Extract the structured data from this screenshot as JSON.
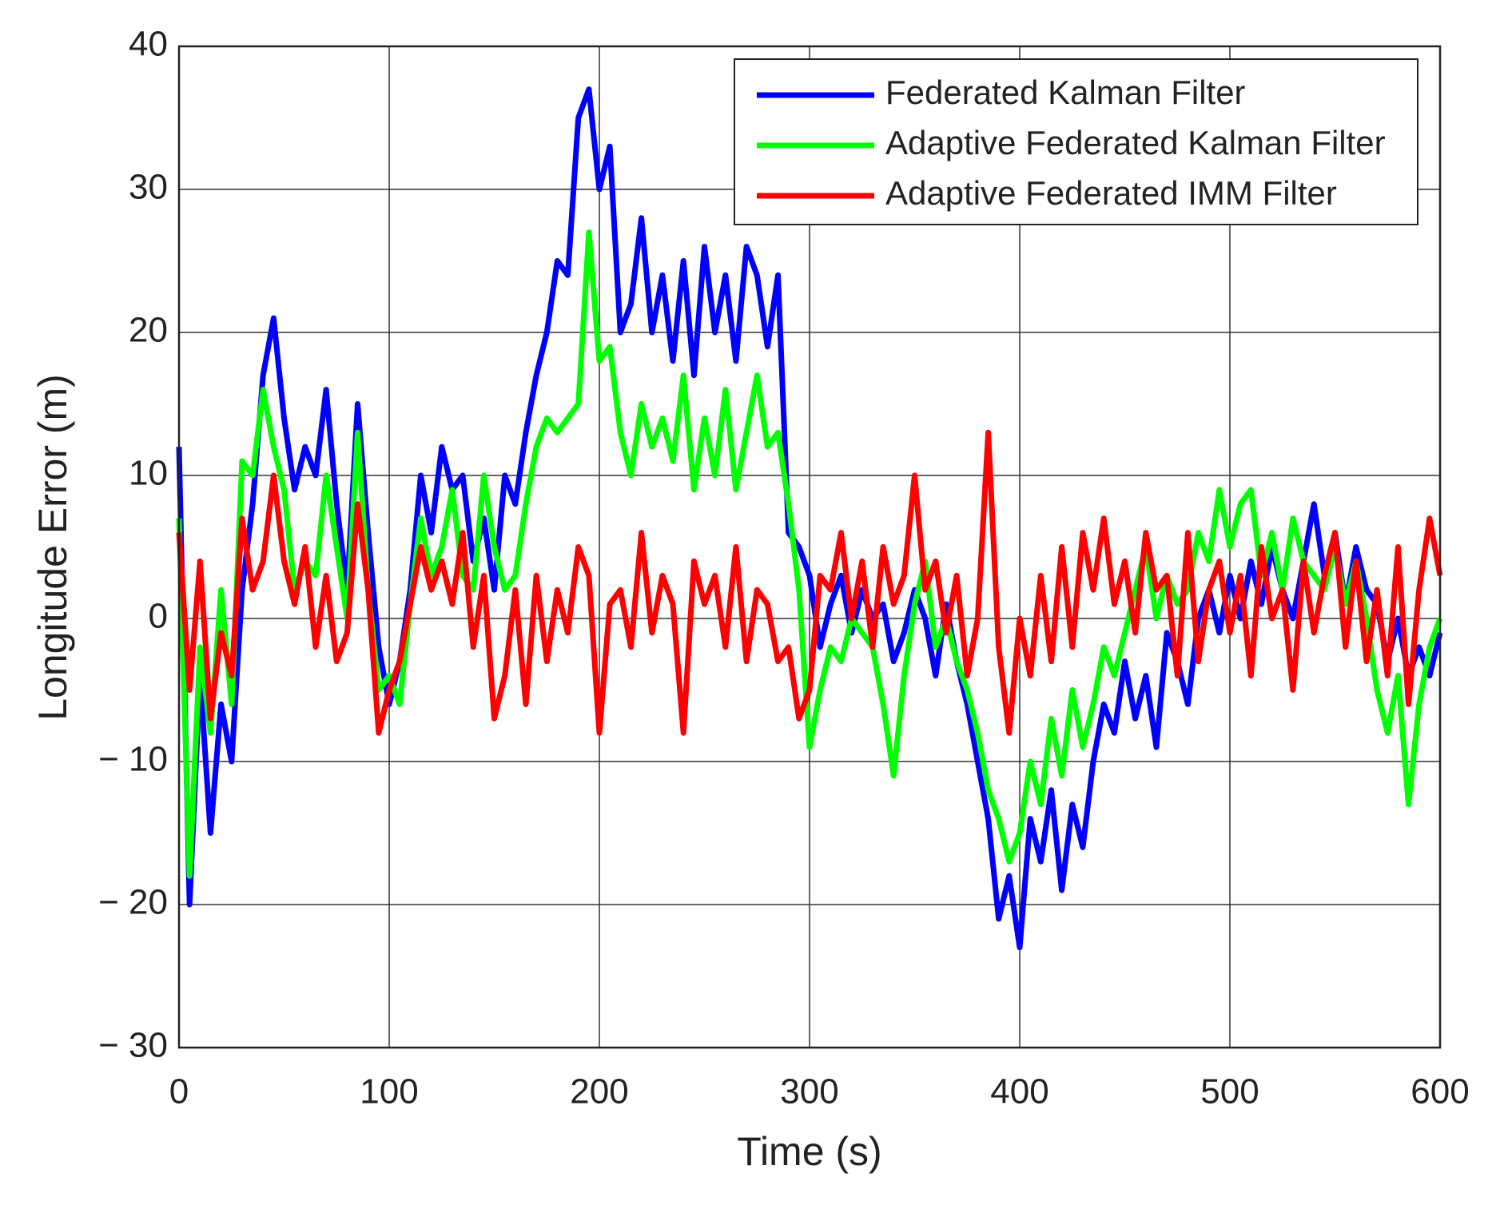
{
  "chart_data": {
    "type": "line",
    "xlabel": "Time (s)",
    "ylabel": "Longitude Error (m)",
    "x": [
      0,
      5,
      10,
      15,
      20,
      25,
      30,
      35,
      40,
      45,
      50,
      55,
      60,
      65,
      70,
      75,
      80,
      85,
      90,
      95,
      100,
      105,
      110,
      115,
      120,
      125,
      130,
      135,
      140,
      145,
      150,
      155,
      160,
      165,
      170,
      175,
      180,
      185,
      190,
      195,
      200,
      205,
      210,
      215,
      220,
      225,
      230,
      235,
      240,
      245,
      250,
      255,
      260,
      265,
      270,
      275,
      280,
      285,
      290,
      295,
      300,
      305,
      310,
      315,
      320,
      325,
      330,
      335,
      340,
      345,
      350,
      355,
      360,
      365,
      370,
      375,
      380,
      385,
      390,
      395,
      400,
      405,
      410,
      415,
      420,
      425,
      430,
      435,
      440,
      445,
      450,
      455,
      460,
      465,
      470,
      475,
      480,
      485,
      490,
      495,
      500,
      505,
      510,
      515,
      520,
      525,
      530,
      535,
      540,
      545,
      550,
      555,
      560,
      565,
      570,
      575,
      580,
      585,
      590,
      595,
      600
    ],
    "series": [
      {
        "name": "Federated Kalman Filter",
        "color": "#0000ff",
        "values": [
          12,
          -20,
          -4,
          -15,
          -6,
          -10,
          2,
          8,
          17,
          21,
          14,
          9,
          12,
          10,
          16,
          8,
          2,
          15,
          6,
          -2,
          -6,
          -3,
          2,
          10,
          6,
          12,
          9,
          10,
          4,
          7,
          2,
          10,
          8,
          13,
          17,
          20,
          25,
          24,
          35,
          37,
          30,
          33,
          20,
          22,
          28,
          20,
          24,
          18,
          25,
          17,
          26,
          20,
          24,
          18,
          26,
          24,
          19,
          24,
          6,
          5,
          3,
          -2,
          1,
          3,
          -1,
          2,
          0,
          1,
          -3,
          -1,
          2,
          0,
          -4,
          1,
          -3,
          -6,
          -10,
          -14,
          -21,
          -18,
          -23,
          -14,
          -17,
          -12,
          -19,
          -13,
          -16,
          -10,
          -6,
          -8,
          -3,
          -7,
          -4,
          -9,
          -1,
          -3,
          -6,
          0,
          2,
          -1,
          3,
          0,
          4,
          1,
          5,
          2,
          0,
          4,
          8,
          3,
          6,
          1,
          5,
          2,
          1,
          -3,
          0,
          -4,
          -2,
          -4,
          -1
        ]
      },
      {
        "name": "Adaptive Federated Kalman Filter",
        "color": "#00ff00",
        "values": [
          7,
          -18,
          -2,
          -8,
          2,
          -6,
          11,
          10,
          16,
          12,
          9,
          2,
          4,
          3,
          10,
          5,
          0,
          13,
          2,
          -5,
          -4,
          -6,
          1,
          7,
          3,
          5,
          9,
          3,
          2,
          10,
          5,
          2,
          3,
          8,
          12,
          14,
          13,
          14,
          15,
          27,
          18,
          19,
          13,
          10,
          15,
          12,
          14,
          11,
          17,
          9,
          14,
          10,
          16,
          9,
          13,
          17,
          12,
          13,
          8,
          2,
          -9,
          -5,
          -2,
          -3,
          0,
          -1,
          -2,
          -6,
          -11,
          -4,
          1,
          4,
          -2,
          0,
          -3,
          -5,
          -8,
          -12,
          -14,
          -17,
          -15,
          -10,
          -13,
          -7,
          -11,
          -5,
          -9,
          -6,
          -2,
          -4,
          -1,
          2,
          5,
          0,
          3,
          1,
          2,
          6,
          4,
          9,
          5,
          8,
          9,
          3,
          6,
          2,
          7,
          4,
          3,
          2,
          5,
          1,
          4,
          0,
          -5,
          -8,
          -4,
          -13,
          -6,
          -2,
          0
        ]
      },
      {
        "name": "Adaptive Federated IMM Filter",
        "color": "#ff0000",
        "values": [
          6,
          -5,
          4,
          -7,
          -1,
          -4,
          7,
          2,
          4,
          10,
          4,
          1,
          5,
          -2,
          3,
          -3,
          -1,
          8,
          2,
          -8,
          -5,
          -3,
          1,
          5,
          2,
          4,
          1,
          6,
          -2,
          3,
          -7,
          -4,
          2,
          -6,
          3,
          -3,
          2,
          -1,
          5,
          3,
          -8,
          1,
          2,
          -2,
          6,
          -1,
          3,
          1,
          -8,
          4,
          1,
          3,
          -2,
          5,
          -3,
          2,
          1,
          -3,
          -2,
          -7,
          -5,
          3,
          2,
          6,
          0,
          4,
          -2,
          5,
          1,
          3,
          10,
          2,
          4,
          -1,
          3,
          -4,
          0,
          13,
          -2,
          -8,
          0,
          -4,
          3,
          -3,
          5,
          -2,
          6,
          2,
          7,
          1,
          4,
          -1,
          6,
          2,
          3,
          -4,
          6,
          -3,
          2,
          4,
          -1,
          3,
          -4,
          5,
          0,
          2,
          -5,
          4,
          -1,
          3,
          6,
          -2,
          4,
          -3,
          2,
          -4,
          5,
          -6,
          2,
          7,
          3
        ]
      }
    ],
    "xlim": [
      0,
      600
    ],
    "xticks": [
      0,
      100,
      200,
      300,
      400,
      500,
      600
    ],
    "ylim": [
      -30,
      40
    ],
    "yticks": [
      {
        "value": -30,
        "label": "− 30"
      },
      {
        "value": -20,
        "label": "− 20"
      },
      {
        "value": -10,
        "label": "− 10"
      },
      0,
      10,
      20,
      30,
      40
    ],
    "grid": true,
    "legend": "upper right"
  }
}
